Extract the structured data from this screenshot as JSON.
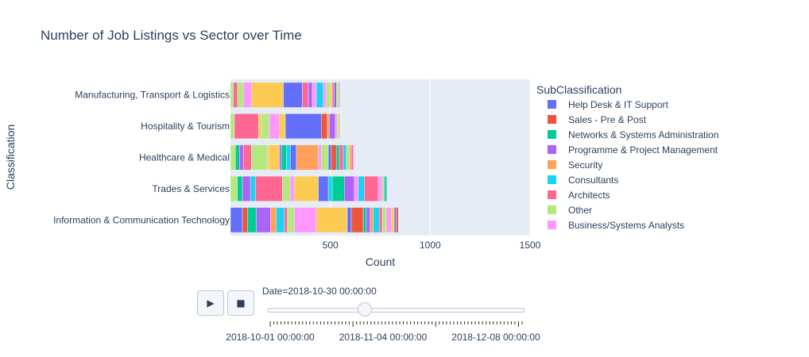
{
  "chart_data": {
    "type": "bar",
    "orientation": "horizontal",
    "barmode": "stack",
    "title": "Number of Job Listings vs Sector over Time",
    "xlabel": "Count",
    "ylabel": "Classification",
    "xlim": [
      0,
      1500
    ],
    "xticks": [
      500,
      1000,
      1500
    ],
    "categories": [
      "Information & Communication Technology",
      "Trades & Services",
      "Healthcare & Medical",
      "Hospitality & Tourism",
      "Manufacturing, Transport & Logistics"
    ],
    "legend_title": "SubClassification",
    "legend_position": "right",
    "legend": [
      {
        "name": "Help Desk & IT Support",
        "color": "#636efa"
      },
      {
        "name": "Sales - Pre & Post",
        "color": "#EF553B"
      },
      {
        "name": "Networks & Systems Administration",
        "color": "#00cc96"
      },
      {
        "name": "Programme & Project Management",
        "color": "#ab63fa"
      },
      {
        "name": "Security",
        "color": "#FFA15A"
      },
      {
        "name": "Consultants",
        "color": "#19d3f3"
      },
      {
        "name": "Architects",
        "color": "#FF6692"
      },
      {
        "name": "Other",
        "color": "#B6E880"
      },
      {
        "name": "Business/Systems Analysts",
        "color": "#FF97FF"
      }
    ],
    "extra_colors": [
      "#FECB52"
    ],
    "segments": [
      [
        [
          60,
          "#636efa"
        ],
        [
          25,
          "#EF553B"
        ],
        [
          45,
          "#00cc96"
        ],
        [
          70,
          "#ab63fa"
        ],
        [
          30,
          "#FFA15A"
        ],
        [
          40,
          "#19d3f3"
        ],
        [
          15,
          "#FF6692"
        ],
        [
          35,
          "#B6E880"
        ],
        [
          110,
          "#FF97FF"
        ],
        [
          155,
          "#FECB52"
        ],
        [
          20,
          "#636efa"
        ],
        [
          60,
          "#EF553B"
        ],
        [
          15,
          "#00cc96"
        ],
        [
          20,
          "#ab63fa"
        ],
        [
          15,
          "#FFA15A"
        ],
        [
          30,
          "#19d3f3"
        ],
        [
          15,
          "#FF6692"
        ],
        [
          20,
          "#B6E880"
        ],
        [
          25,
          "#FF97FF"
        ],
        [
          15,
          "#FECB52"
        ],
        [
          10,
          "#636efa"
        ],
        [
          10,
          "#EF553B"
        ]
      ],
      [
        [
          35,
          "#B6E880"
        ],
        [
          25,
          "#00cc96"
        ],
        [
          40,
          "#ab63fa"
        ],
        [
          25,
          "#19d3f3"
        ],
        [
          135,
          "#FF6692"
        ],
        [
          40,
          "#B6E880"
        ],
        [
          20,
          "#FF97FF"
        ],
        [
          120,
          "#FECB52"
        ],
        [
          50,
          "#636efa"
        ],
        [
          20,
          "#19d3f3"
        ],
        [
          60,
          "#00cc96"
        ],
        [
          50,
          "#ab63fa"
        ],
        [
          20,
          "#FF97FF"
        ],
        [
          30,
          "#19d3f3"
        ],
        [
          70,
          "#FF6692"
        ],
        [
          20,
          "#FF97FF"
        ],
        [
          10,
          "#B6E880"
        ],
        [
          10,
          "#00cc96"
        ],
        [
          5,
          "#19d3f3"
        ]
      ],
      [
        [
          25,
          "#B6E880"
        ],
        [
          20,
          "#00cc96"
        ],
        [
          20,
          "#ab63fa"
        ],
        [
          40,
          "#FF6692"
        ],
        [
          80,
          "#B6E880"
        ],
        [
          10,
          "#FECB52"
        ],
        [
          50,
          "#FECB52"
        ],
        [
          10,
          "#ab63fa"
        ],
        [
          25,
          "#00cc96"
        ],
        [
          20,
          "#19d3f3"
        ],
        [
          30,
          "#636efa"
        ],
        [
          110,
          "#FFA15A"
        ],
        [
          15,
          "#FF97FF"
        ],
        [
          35,
          "#B6E880"
        ],
        [
          15,
          "#636efa"
        ],
        [
          25,
          "#EF553B"
        ],
        [
          15,
          "#00cc96"
        ],
        [
          20,
          "#FF6692"
        ],
        [
          15,
          "#19d3f3"
        ],
        [
          15,
          "#B6E880"
        ],
        [
          10,
          "#FFA15A"
        ],
        [
          10,
          "#FF6692"
        ],
        [
          5,
          "#FF97FF"
        ]
      ],
      [
        [
          20,
          "#B6E880"
        ],
        [
          120,
          "#FF6692"
        ],
        [
          15,
          "#FECB52"
        ],
        [
          40,
          "#B6E880"
        ],
        [
          50,
          "#FF97FF"
        ],
        [
          30,
          "#FECB52"
        ],
        [
          180,
          "#636efa"
        ],
        [
          30,
          "#EF553B"
        ],
        [
          10,
          "#FFA15A"
        ],
        [
          30,
          "#ab63fa"
        ],
        [
          10,
          "#FF97FF"
        ],
        [
          10,
          "#B6E880"
        ],
        [
          5,
          "#FECB52"
        ]
      ],
      [
        [
          15,
          "#B6E880"
        ],
        [
          20,
          "#FF6692"
        ],
        [
          30,
          "#B6E880"
        ],
        [
          40,
          "#FF97FF"
        ],
        [
          160,
          "#FECB52"
        ],
        [
          95,
          "#636efa"
        ],
        [
          30,
          "#FF6692"
        ],
        [
          20,
          "#ab63fa"
        ],
        [
          20,
          "#FF97FF"
        ],
        [
          35,
          "#19d3f3"
        ],
        [
          15,
          "#FF97FF"
        ],
        [
          20,
          "#B6E880"
        ],
        [
          10,
          "#FECB52"
        ],
        [
          10,
          "#FF6692"
        ],
        [
          10,
          "#636efa"
        ],
        [
          10,
          "#B6E880"
        ],
        [
          5,
          "#FFA15A"
        ],
        [
          5,
          "#FF97FF"
        ]
      ]
    ]
  },
  "controls": {
    "play_symbol": "▶",
    "stop_symbol": "■",
    "slider_label": "Date=2018-10-30 00:00:00",
    "slider_position": 0.38,
    "slider_tick_labels": [
      "2018-10-01 00:00:00",
      "2018-11-04 00:00:00",
      "2018-12-08 00:00:00"
    ]
  }
}
